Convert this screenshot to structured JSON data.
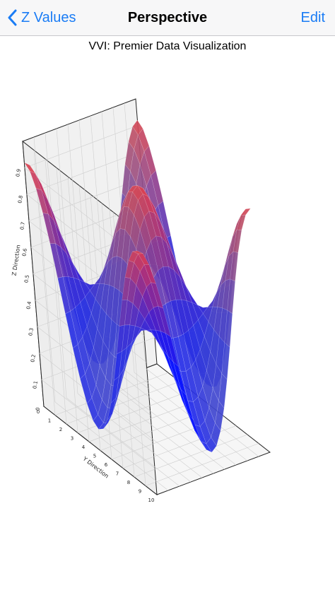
{
  "navbar": {
    "back_label": "Z Values",
    "title": "Perspective",
    "edit_label": "Edit"
  },
  "colors": {
    "accent": "#1a7cf5",
    "surface_low": "#0a14ff",
    "surface_high": "#ff3535"
  },
  "chart_data": {
    "type": "surface3d",
    "title": "VVI: Premier Data Visualization",
    "xlabel": "",
    "ylabel": "Y Direction",
    "zlabel": "Z Direction",
    "y_ticks": [
      "0",
      "1",
      "2",
      "3",
      "4",
      "5",
      "6",
      "7",
      "8",
      "9",
      "10"
    ],
    "z_ticks": [
      "0",
      "0.1",
      "0.2",
      "0.3",
      "0.4",
      "0.5",
      "0.6",
      "0.7",
      "0.8",
      "0.9"
    ],
    "x_range": [
      0,
      10
    ],
    "y_range": [
      0,
      10
    ],
    "z_range": [
      0,
      1
    ],
    "grid": true
  }
}
